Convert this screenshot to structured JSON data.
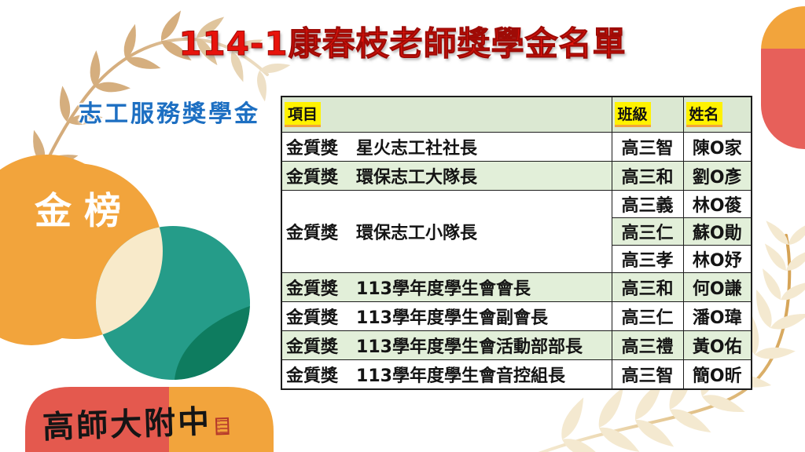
{
  "header": {
    "title": "114-1康春枝老師獎學金名單"
  },
  "section": {
    "label": "志工服務獎學金"
  },
  "badge": {
    "text": "金榜"
  },
  "footer": {
    "logo_text": "高師大附中"
  },
  "table": {
    "headers": {
      "item": "項目",
      "class": "班級",
      "name": "姓名"
    },
    "rows": [
      {
        "award": "金質獎",
        "item": "星火志工社社長",
        "class": "高三智",
        "name": "陳O家"
      },
      {
        "award": "金質獎",
        "item": "環保志工大隊長",
        "class": "高三和",
        "name": "劉O彥"
      },
      {
        "award": "金質獎",
        "item": "環保志工小隊長",
        "entries": [
          {
            "class": "高三義",
            "name": "林O葰"
          },
          {
            "class": "高三仁",
            "name": "蘇O勛"
          },
          {
            "class": "高三孝",
            "name": "林O妤"
          }
        ]
      },
      {
        "award": "金質獎",
        "item": "113學年度學生會會長",
        "class": "高三和",
        "name": "何O謙"
      },
      {
        "award": "金質獎",
        "item": "113學年度學生會副會長",
        "class": "高三仁",
        "name": "潘O瑋"
      },
      {
        "award": "金質獎",
        "item": "113學年度學生會活動部部長",
        "class": "高三禮",
        "name": "黃O佑"
      },
      {
        "award": "金質獎",
        "item": "113學年度學生會音控組長",
        "class": "高三智",
        "name": "簡O昕"
      }
    ]
  },
  "colors": {
    "title_red": "#E7130C",
    "label_blue": "#1D6FC2",
    "highlight_yellow": "#FFF200",
    "header_green": "#DBE8D2",
    "band_green": "#E2EFD9",
    "orange": "#F2A43C",
    "teal": "#259C89",
    "dark_green": "#0E7C5F",
    "cream": "#F8EACA",
    "coral_red": "#E4594E",
    "capsule_red": "#E7605A",
    "gold": "#D6AF7F"
  }
}
